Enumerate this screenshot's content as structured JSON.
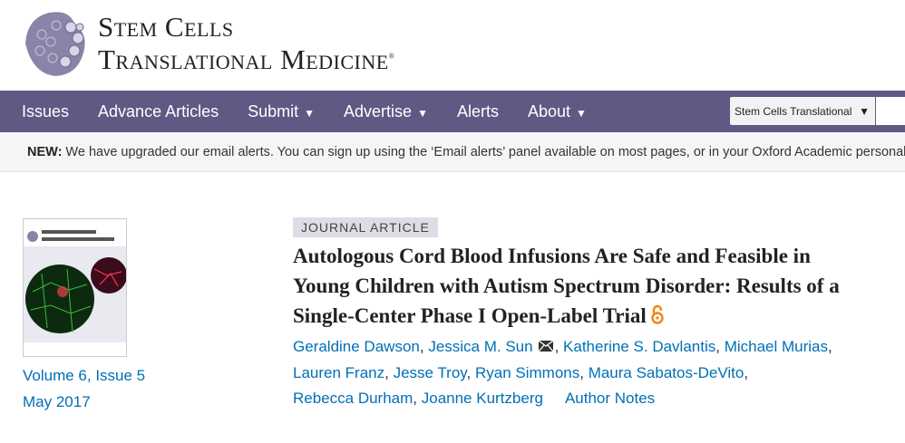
{
  "logo": {
    "line1": "Stem Cells",
    "line2": "Translational Medicine"
  },
  "nav": {
    "items": [
      {
        "label": "Issues"
      },
      {
        "label": "Advance Articles"
      },
      {
        "label": "Submit",
        "dropdown": true
      },
      {
        "label": "Advertise",
        "dropdown": true
      },
      {
        "label": "Alerts"
      },
      {
        "label": "About",
        "dropdown": true
      }
    ],
    "journal_select": "Stem Cells Translational M",
    "color": "#5e5a84"
  },
  "banner": {
    "label": "NEW:",
    "text": " We have upgraded our email alerts. You can sign up using the ‘Email alerts’ panel available on most pages, or in your Oxford Academic personal accou"
  },
  "issue": {
    "volume": "Volume 6, Issue 5",
    "date": "May 2017"
  },
  "article": {
    "type": "JOURNAL ARTICLE",
    "title": "Autologous Cord Blood Infusions Are Safe and Feasible in Young Children with Autism Spectrum Disorder: Results of a Single-Center Phase I Open-Label Trial",
    "open_access_icon": "open-access-icon",
    "authors": [
      "Geraldine Dawson",
      "Jessica M. Sun",
      "Katherine S. Davlantis",
      "Michael Murias",
      "Lauren Franz",
      "Jesse Troy",
      "Ryan Simmons",
      "Maura Sabatos-DeVito",
      "Rebecca Durham",
      "Joanne Kurtzberg"
    ],
    "author_notes": "Author Notes",
    "link_color": "#006fb7"
  }
}
